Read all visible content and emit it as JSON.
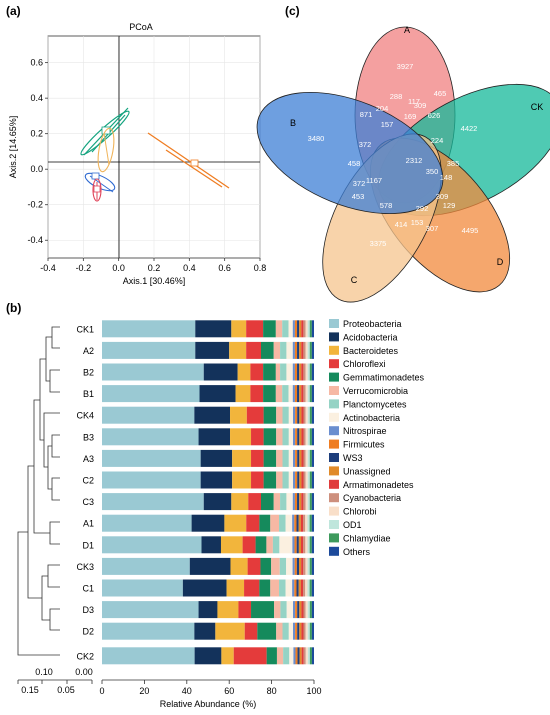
{
  "panels": {
    "a": "(a)",
    "b": "(b)",
    "c": "(c)"
  },
  "pcoa": {
    "title": "PCoA",
    "xlabel": "Axis.1 [30.46%]",
    "ylabel": "Axis.2 [14.65%]",
    "xticks": [
      "-0.4",
      "-0.2",
      "0.0",
      "0.2",
      "0.4",
      "0.6",
      "0.8"
    ],
    "yticks": [
      "0.6",
      "0.4",
      "0.2",
      "0.0",
      "-0.2",
      "-0.4"
    ]
  },
  "venn": {
    "sets": [
      "A",
      "B",
      "CK",
      "C",
      "D"
    ],
    "colors": [
      "#f08080",
      "#3d7fd6",
      "#14b89a",
      "#f5c48e",
      "#f28a3c"
    ],
    "numbers": [
      "3927",
      "3480",
      "4422",
      "3375",
      "4495",
      "288",
      "117",
      "465",
      "871",
      "204",
      "309",
      "157",
      "169",
      "626",
      "372",
      "224",
      "458",
      "2312",
      "385",
      "350",
      "148",
      "372",
      "1167",
      "309",
      "453",
      "578",
      "292",
      "129",
      "414",
      "153",
      "307"
    ]
  },
  "dendrogram": {
    "scale_ticks_top": [
      "0.10",
      "0.00"
    ],
    "scale_ticks_bottom": [
      "0.15",
      "0.05"
    ]
  },
  "chart_data": {
    "type": "bar",
    "orientation": "horizontal",
    "stacked": true,
    "xlabel": "Relative Abundance (%)",
    "xlim": [
      0,
      100
    ],
    "xticks": [
      "0",
      "20",
      "40",
      "60",
      "80",
      "100"
    ],
    "categories": [
      "CK1",
      "A2",
      "B2",
      "B1",
      "CK4",
      "B3",
      "A3",
      "C2",
      "C3",
      "A1",
      "D1",
      "CK3",
      "C1",
      "D3",
      "D2",
      "CK2"
    ],
    "series": [
      {
        "name": "Proteobacteria",
        "color": "#9ac9d3",
        "values": [
          44,
          44,
          48,
          46,
          44,
          46,
          47,
          47,
          48,
          41,
          46,
          41,
          37,
          46,
          44,
          45
        ]
      },
      {
        "name": "Acidobacteria",
        "color": "#13325b",
        "values": [
          17,
          16,
          16,
          17,
          17,
          15,
          15,
          15,
          13,
          15,
          9,
          19,
          20,
          9,
          10,
          13
        ]
      },
      {
        "name": "Bacteroidetes",
        "color": "#f2b53c",
        "values": [
          7,
          8,
          6,
          7,
          8,
          10,
          9,
          9,
          8,
          10,
          10,
          8,
          8,
          10,
          14,
          6
        ]
      },
      {
        "name": "Chloroflexi",
        "color": "#e43b3b",
        "values": [
          8,
          7,
          6,
          6,
          8,
          6,
          6,
          6,
          6,
          6,
          6,
          6,
          7,
          6,
          6,
          16
        ]
      },
      {
        "name": "Gemmatimonadetes",
        "color": "#158a5c",
        "values": [
          6,
          6,
          6,
          6,
          6,
          6,
          6,
          6,
          6,
          5,
          5,
          5,
          5,
          11,
          9,
          5
        ]
      },
      {
        "name": "Verrucomicrobia",
        "color": "#f6b8a4",
        "values": [
          3,
          3,
          2,
          3,
          3,
          3,
          3,
          3,
          3,
          4,
          3,
          4,
          4,
          3,
          3,
          3
        ]
      },
      {
        "name": "Planctomycetes",
        "color": "#95d3c5",
        "values": [
          3,
          3,
          3,
          3,
          3,
          3,
          3,
          3,
          3,
          3,
          3,
          3,
          3,
          3,
          3,
          3
        ]
      },
      {
        "name": "Actinobacteria",
        "color": "#fbf0e0",
        "values": [
          2,
          3,
          3,
          2,
          2,
          2,
          2,
          2,
          3,
          3,
          6,
          3,
          3,
          3,
          2,
          2
        ]
      },
      {
        "name": "Nitrospirae",
        "color": "#6a8ecf",
        "values": [
          1,
          1,
          1,
          1,
          1,
          1,
          1,
          1,
          1,
          1,
          1,
          1,
          1,
          1,
          1,
          1
        ]
      },
      {
        "name": "Firmicutes",
        "color": "#ef7d22",
        "values": [
          1,
          1,
          1,
          1,
          1,
          1,
          1,
          1,
          1,
          1,
          1,
          1,
          1,
          1,
          1,
          1
        ]
      },
      {
        "name": "WS3",
        "color": "#1d3e7c",
        "values": [
          1,
          1,
          1,
          1,
          1,
          1,
          1,
          1,
          1,
          1,
          1,
          1,
          1,
          1,
          1,
          1
        ]
      },
      {
        "name": "Unassigned",
        "color": "#e08a2a",
        "values": [
          1,
          1,
          1,
          1,
          1,
          1,
          1,
          1,
          1,
          1,
          1,
          1,
          1,
          1,
          1,
          1
        ]
      },
      {
        "name": "Armatimonadetes",
        "color": "#e03c3c",
        "values": [
          1,
          1,
          1,
          1,
          1,
          1,
          1,
          1,
          1,
          1,
          1,
          1,
          1,
          1,
          1,
          1
        ]
      },
      {
        "name": "Cyanobacteria",
        "color": "#cd8f7d",
        "values": [
          1,
          1,
          1,
          1,
          1,
          1,
          1,
          1,
          1,
          1,
          1,
          1,
          1,
          1,
          1,
          1
        ]
      },
      {
        "name": "Chlorobi",
        "color": "#f9dfc9",
        "values": [
          1,
          1,
          1,
          1,
          1,
          1,
          1,
          1,
          1,
          1,
          1,
          1,
          1,
          1,
          1,
          1
        ]
      },
      {
        "name": "OD1",
        "color": "#bfe6dc",
        "values": [
          1,
          1,
          1,
          1,
          1,
          1,
          1,
          1,
          1,
          1,
          1,
          1,
          1,
          1,
          1,
          1
        ]
      },
      {
        "name": "Chlamydiae",
        "color": "#3d9a5c",
        "values": [
          1,
          1,
          1,
          1,
          1,
          1,
          1,
          1,
          1,
          1,
          1,
          1,
          1,
          1,
          1,
          1
        ]
      },
      {
        "name": "Others",
        "color": "#1c4a9b",
        "values": [
          1,
          1,
          1,
          1,
          1,
          1,
          1,
          1,
          1,
          1,
          1,
          1,
          1,
          1,
          1,
          1
        ]
      }
    ]
  }
}
